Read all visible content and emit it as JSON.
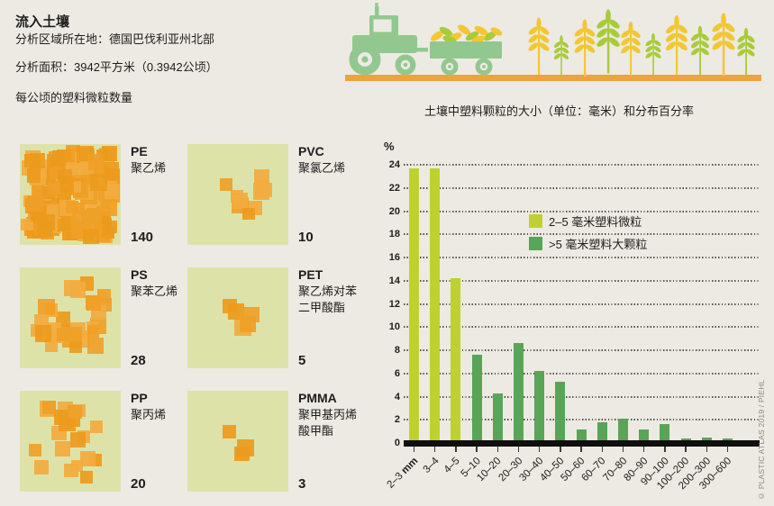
{
  "page": {
    "background": "#edeae3",
    "text_color": "#1d1d1b"
  },
  "header": {
    "title": "流入土壤",
    "location_line": "分析区域所在地：德国巴伐利亚州北部",
    "area_line": "分析面积：3942平方米（0.3942公顷）",
    "per_hectare_line": "每公顷的塑料微粒数量"
  },
  "illustration": {
    "name": "tractor-pulling-harvest-trailer-with-wheat-field",
    "ground_color": "#f0a33a",
    "tractor_color": "#92c88f",
    "wheat_yellow": "#f2c733",
    "wheat_green": "#a9cb3b"
  },
  "polymers": {
    "tile_bg": "#dde3a8",
    "square_colors": [
      "#efa027",
      "#eb9a1c",
      "#f2ab3f"
    ],
    "items": [
      {
        "abbr": "PE",
        "name": "聚乙烯",
        "count": 140
      },
      {
        "abbr": "PVC",
        "name": "聚氯乙烯",
        "count": 10
      },
      {
        "abbr": "PS",
        "name": "聚苯乙烯",
        "count": 28
      },
      {
        "abbr": "PET",
        "name": "聚乙烯对苯二甲酸酯",
        "count": 5
      },
      {
        "abbr": "PP",
        "name": "聚丙烯",
        "count": 20
      },
      {
        "abbr": "PMMA",
        "name": "聚甲基丙烯酸甲酯",
        "count": 3
      }
    ]
  },
  "chart_data": {
    "type": "bar",
    "title": "土壤中塑料颗粒的大小（单位：毫米）和分布百分率",
    "ylabel": "%",
    "ylim": [
      0,
      24
    ],
    "ytick_step": 2,
    "grid": "horizontal-dotted",
    "legend_position": "inside-upper-right",
    "categories": [
      "2–3 mm",
      "3–4",
      "4–5",
      "5–10",
      "10–20",
      "20–30",
      "30–40",
      "40–50",
      "50–60",
      "60–70",
      "70–80",
      "80–90",
      "90–100",
      "100–200",
      "200–300",
      "300–600"
    ],
    "series": [
      {
        "name": "2–5 毫米塑料微粒",
        "color": "#bfd130",
        "values": [
          23.7,
          23.7,
          14.2,
          null,
          null,
          null,
          null,
          null,
          null,
          null,
          null,
          null,
          null,
          null,
          null,
          null
        ]
      },
      {
        "name": ">5 毫米塑料大颗粒",
        "color": "#58a558",
        "values": [
          null,
          null,
          null,
          7.6,
          4.3,
          8.6,
          6.2,
          5.3,
          1.2,
          1.8,
          2.1,
          1.2,
          1.6,
          0.3,
          0.5,
          0.2
        ]
      }
    ]
  },
  "credit": "© PLASTIC ATLAS 2019 / PIEHL"
}
